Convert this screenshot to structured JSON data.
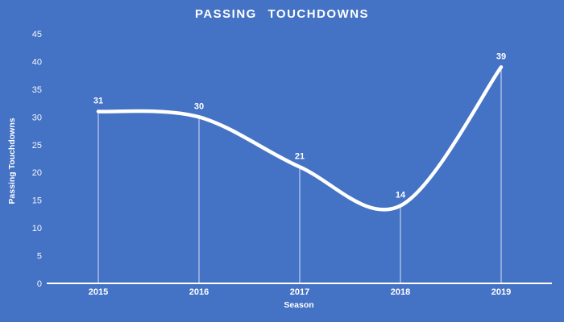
{
  "chart_data": {
    "type": "line",
    "title": "PASSING TOUCHDOWNS",
    "xlabel": "Season",
    "ylabel": "Passing Touchdowns",
    "categories": [
      "2015",
      "2016",
      "2017",
      "2018",
      "2019"
    ],
    "series": [
      {
        "name": "Passing Touchdowns",
        "values": [
          31,
          30,
          21,
          14,
          39
        ]
      }
    ],
    "data_labels_shown": true,
    "ylim": [
      0,
      45
    ],
    "ytick_step": 5,
    "grid": false,
    "legend_position": "none",
    "line_style": "smooth",
    "colors": {
      "background": "#4472C4",
      "line": "#FFFFFF",
      "text": "#FFFFFF",
      "axis": "#FFFFFF",
      "drop_line": "#FFFFFF"
    }
  }
}
